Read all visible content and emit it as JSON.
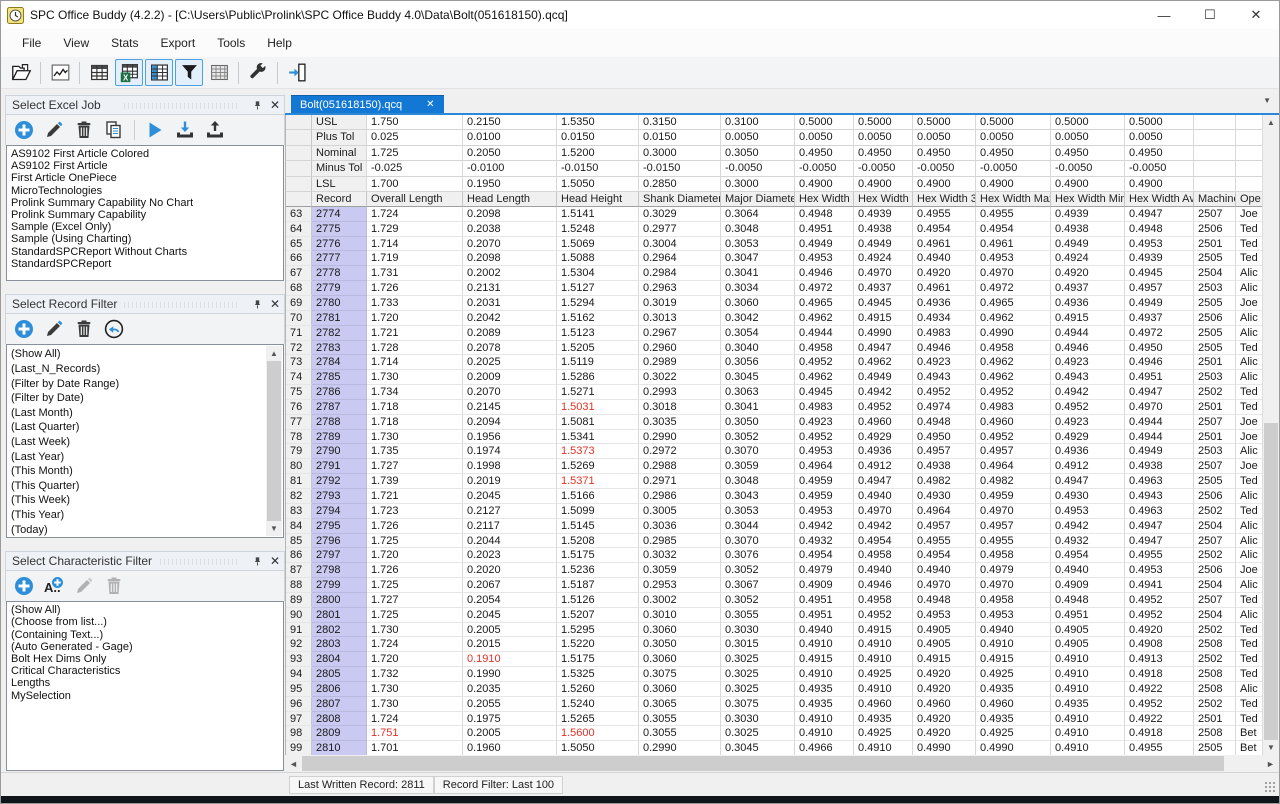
{
  "window": {
    "title": "SPC Office Buddy (4.2.2) - [C:\\Users\\Public\\Prolink\\SPC Office Buddy 4.0\\Data\\Bolt(051618150).qcq]"
  },
  "menu": [
    "File",
    "View",
    "Stats",
    "Export",
    "Tools",
    "Help"
  ],
  "toolbar": [
    {
      "icon": "open-file-icon",
      "active": false,
      "sep_after": true
    },
    {
      "icon": "chart-icon",
      "active": false,
      "sep_after": true
    },
    {
      "icon": "data-grid-icon",
      "active": false,
      "sep_after": false
    },
    {
      "icon": "excel-grid-icon",
      "active": true,
      "sep_after": false
    },
    {
      "icon": "column-grid-icon",
      "active": true,
      "sep_after": false
    },
    {
      "icon": "filter-funnel-icon",
      "active": true,
      "sep_after": false
    },
    {
      "icon": "pivot-grid-icon",
      "active": false,
      "sep_after": true
    },
    {
      "icon": "wrench-icon",
      "active": false,
      "sep_after": true
    },
    {
      "icon": "exit-icon",
      "active": false,
      "sep_after": false
    }
  ],
  "panels": {
    "excel_job": {
      "title": "Select Excel Job",
      "tools": [
        {
          "icon": "add-icon"
        },
        {
          "icon": "edit-icon"
        },
        {
          "icon": "delete-icon"
        },
        {
          "icon": "copy-icon",
          "sep_after": true
        },
        {
          "icon": "run-icon"
        },
        {
          "icon": "import-icon"
        },
        {
          "icon": "export-icon"
        }
      ],
      "items": [
        "AS9102 First Article Colored",
        "AS9102 First Article",
        "First Article OnePiece",
        "MicroTechnologies",
        "Prolink Summary Capability No Chart",
        "Prolink Summary Capability",
        "Sample (Excel Only)",
        "Sample (Using Charting)",
        "StandardSPCReport Without Charts",
        "StandardSPCReport"
      ]
    },
    "record_filter": {
      "title": "Select Record Filter",
      "tools": [
        {
          "icon": "add-icon"
        },
        {
          "icon": "edit-icon"
        },
        {
          "icon": "delete-icon"
        },
        {
          "icon": "revert-icon"
        }
      ],
      "items": [
        "(Show All)",
        "(Last_N_Records)",
        "(Filter by Date Range)",
        "(Filter by Date)",
        "(Last Month)",
        "(Last Quarter)",
        "(Last Week)",
        "(Last Year)",
        "(This Month)",
        "(This Quarter)",
        "(This Week)",
        "(This Year)",
        "(Today)"
      ]
    },
    "characteristic_filter": {
      "title": "Select Characteristic Filter",
      "tools": [
        {
          "icon": "add-icon"
        },
        {
          "icon": "add-text-icon"
        },
        {
          "icon": "edit-icon",
          "disabled": true
        },
        {
          "icon": "delete-icon",
          "disabled": true
        }
      ],
      "items": [
        "(Show All)",
        "(Choose from list...)",
        "(Containing Text...)",
        "(Auto Generated - Gage)",
        "Bolt Hex Dims Only",
        "Critical Characteristics",
        "Lengths",
        "MySelection"
      ]
    }
  },
  "tab": {
    "label": "Bolt(051618150).qcq",
    "close": "✕",
    "overflow": "▼"
  },
  "table": {
    "columns": [
      "Record",
      "Overall Length",
      "Head Length",
      "Head Height",
      "Shank Diameter",
      "Major Diameter",
      "Hex Width 1",
      "Hex Width 2",
      "Hex Width 3",
      "Hex Width Max",
      "Hex Width Min",
      "Hex Width Average",
      "Machine",
      "Ope"
    ],
    "spec_rows": [
      {
        "label": "USL",
        "values": [
          "1.750",
          "0.2150",
          "1.5350",
          "0.3150",
          "0.3100",
          "0.5000",
          "0.5000",
          "0.5000",
          "0.5000",
          "0.5000",
          "0.5000"
        ]
      },
      {
        "label": "Plus Tol",
        "values": [
          "0.025",
          "0.0100",
          "0.0150",
          "0.0150",
          "0.0050",
          "0.0050",
          "0.0050",
          "0.0050",
          "0.0050",
          "0.0050",
          "0.0050"
        ]
      },
      {
        "label": "Nominal",
        "values": [
          "1.725",
          "0.2050",
          "1.5200",
          "0.3000",
          "0.3050",
          "0.4950",
          "0.4950",
          "0.4950",
          "0.4950",
          "0.4950",
          "0.4950"
        ]
      },
      {
        "label": "Minus Tol",
        "values": [
          "-0.025",
          "-0.0100",
          "-0.0150",
          "-0.0150",
          "-0.0050",
          "-0.0050",
          "-0.0050",
          "-0.0050",
          "-0.0050",
          "-0.0050",
          "-0.0050"
        ]
      },
      {
        "label": "LSL",
        "values": [
          "1.700",
          "0.1950",
          "1.5050",
          "0.2850",
          "0.3000",
          "0.4900",
          "0.4900",
          "0.4900",
          "0.4900",
          "0.4900",
          "0.4900"
        ]
      }
    ],
    "rows": [
      {
        "n": "63",
        "r": "2774",
        "v": [
          "1.724",
          "0.2098",
          "1.5141",
          "0.3029",
          "0.3064",
          "0.4948",
          "0.4939",
          "0.4955",
          "0.4955",
          "0.4939",
          "0.4947"
        ],
        "m": "2507",
        "o": "Joe"
      },
      {
        "n": "64",
        "r": "2775",
        "v": [
          "1.729",
          "0.2038",
          "1.5248",
          "0.2977",
          "0.3048",
          "0.4951",
          "0.4938",
          "0.4954",
          "0.4954",
          "0.4938",
          "0.4948"
        ],
        "m": "2506",
        "o": "Ted"
      },
      {
        "n": "65",
        "r": "2776",
        "v": [
          "1.714",
          "0.2070",
          "1.5069",
          "0.3004",
          "0.3053",
          "0.4949",
          "0.4949",
          "0.4961",
          "0.4961",
          "0.4949",
          "0.4953"
        ],
        "m": "2501",
        "o": "Ted"
      },
      {
        "n": "66",
        "r": "2777",
        "v": [
          "1.719",
          "0.2098",
          "1.5088",
          "0.2964",
          "0.3047",
          "0.4953",
          "0.4924",
          "0.4940",
          "0.4953",
          "0.4924",
          "0.4939"
        ],
        "m": "2505",
        "o": "Ted"
      },
      {
        "n": "67",
        "r": "2778",
        "v": [
          "1.731",
          "0.2002",
          "1.5304",
          "0.2984",
          "0.3041",
          "0.4946",
          "0.4970",
          "0.4920",
          "0.4970",
          "0.4920",
          "0.4945"
        ],
        "m": "2504",
        "o": "Alic"
      },
      {
        "n": "68",
        "r": "2779",
        "v": [
          "1.726",
          "0.2131",
          "1.5127",
          "0.2963",
          "0.3034",
          "0.4972",
          "0.4937",
          "0.4961",
          "0.4972",
          "0.4937",
          "0.4957"
        ],
        "m": "2503",
        "o": "Alic"
      },
      {
        "n": "69",
        "r": "2780",
        "v": [
          "1.733",
          "0.2031",
          "1.5294",
          "0.3019",
          "0.3060",
          "0.4965",
          "0.4945",
          "0.4936",
          "0.4965",
          "0.4936",
          "0.4949"
        ],
        "m": "2505",
        "o": "Joe"
      },
      {
        "n": "70",
        "r": "2781",
        "v": [
          "1.720",
          "0.2042",
          "1.5162",
          "0.3013",
          "0.3042",
          "0.4962",
          "0.4915",
          "0.4934",
          "0.4962",
          "0.4915",
          "0.4937"
        ],
        "m": "2506",
        "o": "Alic"
      },
      {
        "n": "71",
        "r": "2782",
        "v": [
          "1.721",
          "0.2089",
          "1.5123",
          "0.2967",
          "0.3054",
          "0.4944",
          "0.4990",
          "0.4983",
          "0.4990",
          "0.4944",
          "0.4972"
        ],
        "m": "2505",
        "o": "Alic"
      },
      {
        "n": "72",
        "r": "2783",
        "v": [
          "1.728",
          "0.2078",
          "1.5205",
          "0.2960",
          "0.3040",
          "0.4958",
          "0.4947",
          "0.4946",
          "0.4958",
          "0.4946",
          "0.4950"
        ],
        "m": "2505",
        "o": "Ted"
      },
      {
        "n": "73",
        "r": "2784",
        "v": [
          "1.714",
          "0.2025",
          "1.5119",
          "0.2989",
          "0.3056",
          "0.4952",
          "0.4962",
          "0.4923",
          "0.4962",
          "0.4923",
          "0.4946"
        ],
        "m": "2501",
        "o": "Alic"
      },
      {
        "n": "74",
        "r": "2785",
        "v": [
          "1.730",
          "0.2009",
          "1.5286",
          "0.3022",
          "0.3045",
          "0.4962",
          "0.4949",
          "0.4943",
          "0.4962",
          "0.4943",
          "0.4951"
        ],
        "m": "2503",
        "o": "Alic"
      },
      {
        "n": "75",
        "r": "2786",
        "v": [
          "1.734",
          "0.2070",
          "1.5271",
          "0.2993",
          "0.3063",
          "0.4945",
          "0.4942",
          "0.4952",
          "0.4952",
          "0.4942",
          "0.4947"
        ],
        "m": "2502",
        "o": "Ted"
      },
      {
        "n": "76",
        "r": "2787",
        "v": [
          "1.718",
          "0.2145",
          "1.5031",
          "0.3018",
          "0.3041",
          "0.4983",
          "0.4952",
          "0.4974",
          "0.4983",
          "0.4952",
          "0.4970"
        ],
        "m": "2501",
        "o": "Ted"
      },
      {
        "n": "77",
        "r": "2788",
        "v": [
          "1.718",
          "0.2094",
          "1.5081",
          "0.3035",
          "0.3050",
          "0.4923",
          "0.4960",
          "0.4948",
          "0.4960",
          "0.4923",
          "0.4944"
        ],
        "m": "2507",
        "o": "Joe"
      },
      {
        "n": "78",
        "r": "2789",
        "v": [
          "1.730",
          "0.1956",
          "1.5341",
          "0.2990",
          "0.3052",
          "0.4952",
          "0.4929",
          "0.4950",
          "0.4952",
          "0.4929",
          "0.4944"
        ],
        "m": "2501",
        "o": "Joe"
      },
      {
        "n": "79",
        "r": "2790",
        "v": [
          "1.735",
          "0.1974",
          "1.5373",
          "0.2972",
          "0.3070",
          "0.4953",
          "0.4936",
          "0.4957",
          "0.4957",
          "0.4936",
          "0.4949"
        ],
        "m": "2503",
        "o": "Alic"
      },
      {
        "n": "80",
        "r": "2791",
        "v": [
          "1.727",
          "0.1998",
          "1.5269",
          "0.2988",
          "0.3059",
          "0.4964",
          "0.4912",
          "0.4938",
          "0.4964",
          "0.4912",
          "0.4938"
        ],
        "m": "2507",
        "o": "Joe"
      },
      {
        "n": "81",
        "r": "2792",
        "v": [
          "1.739",
          "0.2019",
          "1.5371",
          "0.2971",
          "0.3048",
          "0.4959",
          "0.4947",
          "0.4982",
          "0.4982",
          "0.4947",
          "0.4963"
        ],
        "m": "2505",
        "o": "Ted"
      },
      {
        "n": "82",
        "r": "2793",
        "v": [
          "1.721",
          "0.2045",
          "1.5166",
          "0.2986",
          "0.3043",
          "0.4959",
          "0.4940",
          "0.4930",
          "0.4959",
          "0.4930",
          "0.4943"
        ],
        "m": "2506",
        "o": "Alic"
      },
      {
        "n": "83",
        "r": "2794",
        "v": [
          "1.723",
          "0.2127",
          "1.5099",
          "0.3005",
          "0.3053",
          "0.4953",
          "0.4970",
          "0.4964",
          "0.4970",
          "0.4953",
          "0.4963"
        ],
        "m": "2502",
        "o": "Ted"
      },
      {
        "n": "84",
        "r": "2795",
        "v": [
          "1.726",
          "0.2117",
          "1.5145",
          "0.3036",
          "0.3044",
          "0.4942",
          "0.4942",
          "0.4957",
          "0.4957",
          "0.4942",
          "0.4947"
        ],
        "m": "2504",
        "o": "Alic"
      },
      {
        "n": "85",
        "r": "2796",
        "v": [
          "1.725",
          "0.2044",
          "1.5208",
          "0.2985",
          "0.3070",
          "0.4932",
          "0.4954",
          "0.4955",
          "0.4955",
          "0.4932",
          "0.4947"
        ],
        "m": "2507",
        "o": "Alic"
      },
      {
        "n": "86",
        "r": "2797",
        "v": [
          "1.720",
          "0.2023",
          "1.5175",
          "0.3032",
          "0.3076",
          "0.4954",
          "0.4958",
          "0.4954",
          "0.4958",
          "0.4954",
          "0.4955"
        ],
        "m": "2502",
        "o": "Alic"
      },
      {
        "n": "87",
        "r": "2798",
        "v": [
          "1.726",
          "0.2020",
          "1.5236",
          "0.3059",
          "0.3052",
          "0.4979",
          "0.4940",
          "0.4940",
          "0.4979",
          "0.4940",
          "0.4953"
        ],
        "m": "2506",
        "o": "Joe"
      },
      {
        "n": "88",
        "r": "2799",
        "v": [
          "1.725",
          "0.2067",
          "1.5187",
          "0.2953",
          "0.3067",
          "0.4909",
          "0.4946",
          "0.4970",
          "0.4970",
          "0.4909",
          "0.4941"
        ],
        "m": "2504",
        "o": "Alic"
      },
      {
        "n": "89",
        "r": "2800",
        "v": [
          "1.727",
          "0.2054",
          "1.5126",
          "0.3002",
          "0.3052",
          "0.4951",
          "0.4958",
          "0.4948",
          "0.4958",
          "0.4948",
          "0.4952"
        ],
        "m": "2507",
        "o": "Ted"
      },
      {
        "n": "90",
        "r": "2801",
        "v": [
          "1.725",
          "0.2045",
          "1.5207",
          "0.3010",
          "0.3055",
          "0.4951",
          "0.4952",
          "0.4953",
          "0.4953",
          "0.4951",
          "0.4952"
        ],
        "m": "2504",
        "o": "Alic"
      },
      {
        "n": "91",
        "r": "2802",
        "v": [
          "1.730",
          "0.2005",
          "1.5295",
          "0.3060",
          "0.3030",
          "0.4940",
          "0.4915",
          "0.4905",
          "0.4940",
          "0.4905",
          "0.4920"
        ],
        "m": "2502",
        "o": "Ted"
      },
      {
        "n": "92",
        "r": "2803",
        "v": [
          "1.724",
          "0.2015",
          "1.5220",
          "0.3050",
          "0.3015",
          "0.4910",
          "0.4910",
          "0.4905",
          "0.4910",
          "0.4905",
          "0.4908"
        ],
        "m": "2508",
        "o": "Ted"
      },
      {
        "n": "93",
        "r": "2804",
        "v": [
          "1.720",
          "0.1910",
          "1.5175",
          "0.3060",
          "0.3025",
          "0.4915",
          "0.4910",
          "0.4915",
          "0.4915",
          "0.4910",
          "0.4913"
        ],
        "m": "2502",
        "o": "Ted"
      },
      {
        "n": "94",
        "r": "2805",
        "v": [
          "1.732",
          "0.1990",
          "1.5325",
          "0.3075",
          "0.3025",
          "0.4910",
          "0.4925",
          "0.4920",
          "0.4925",
          "0.4910",
          "0.4918"
        ],
        "m": "2508",
        "o": "Ted"
      },
      {
        "n": "95",
        "r": "2806",
        "v": [
          "1.730",
          "0.2035",
          "1.5260",
          "0.3060",
          "0.3025",
          "0.4935",
          "0.4910",
          "0.4920",
          "0.4935",
          "0.4910",
          "0.4922"
        ],
        "m": "2508",
        "o": "Alic"
      },
      {
        "n": "96",
        "r": "2807",
        "v": [
          "1.730",
          "0.2055",
          "1.5240",
          "0.3065",
          "0.3075",
          "0.4935",
          "0.4960",
          "0.4960",
          "0.4960",
          "0.4935",
          "0.4952"
        ],
        "m": "2502",
        "o": "Ted"
      },
      {
        "n": "97",
        "r": "2808",
        "v": [
          "1.724",
          "0.1975",
          "1.5265",
          "0.3055",
          "0.3030",
          "0.4910",
          "0.4935",
          "0.4920",
          "0.4935",
          "0.4910",
          "0.4922"
        ],
        "m": "2501",
        "o": "Ted"
      },
      {
        "n": "98",
        "r": "2809",
        "v": [
          "1.751",
          "0.2005",
          "1.5600",
          "0.3055",
          "0.3025",
          "0.4910",
          "0.4925",
          "0.4920",
          "0.4925",
          "0.4910",
          "0.4918"
        ],
        "m": "2508",
        "o": "Bet"
      },
      {
        "n": "99",
        "r": "2810",
        "v": [
          "1.701",
          "0.1960",
          "1.5050",
          "0.2990",
          "0.3045",
          "0.4966",
          "0.4910",
          "0.4990",
          "0.4990",
          "0.4910",
          "0.4955"
        ],
        "m": "2505",
        "o": "Bet"
      }
    ],
    "red_cells": [
      [
        13,
        2
      ],
      [
        16,
        2
      ],
      [
        18,
        2
      ],
      [
        30,
        1
      ],
      [
        35,
        0
      ],
      [
        35,
        2
      ]
    ]
  },
  "status": {
    "last_written": "Last Written Record: 2811",
    "record_filter": "Record Filter: Last 100"
  },
  "colors": {
    "accent_blue": "#1377d4",
    "out_of_spec_red": "#e03227",
    "record_col": "#c9c9f1"
  }
}
